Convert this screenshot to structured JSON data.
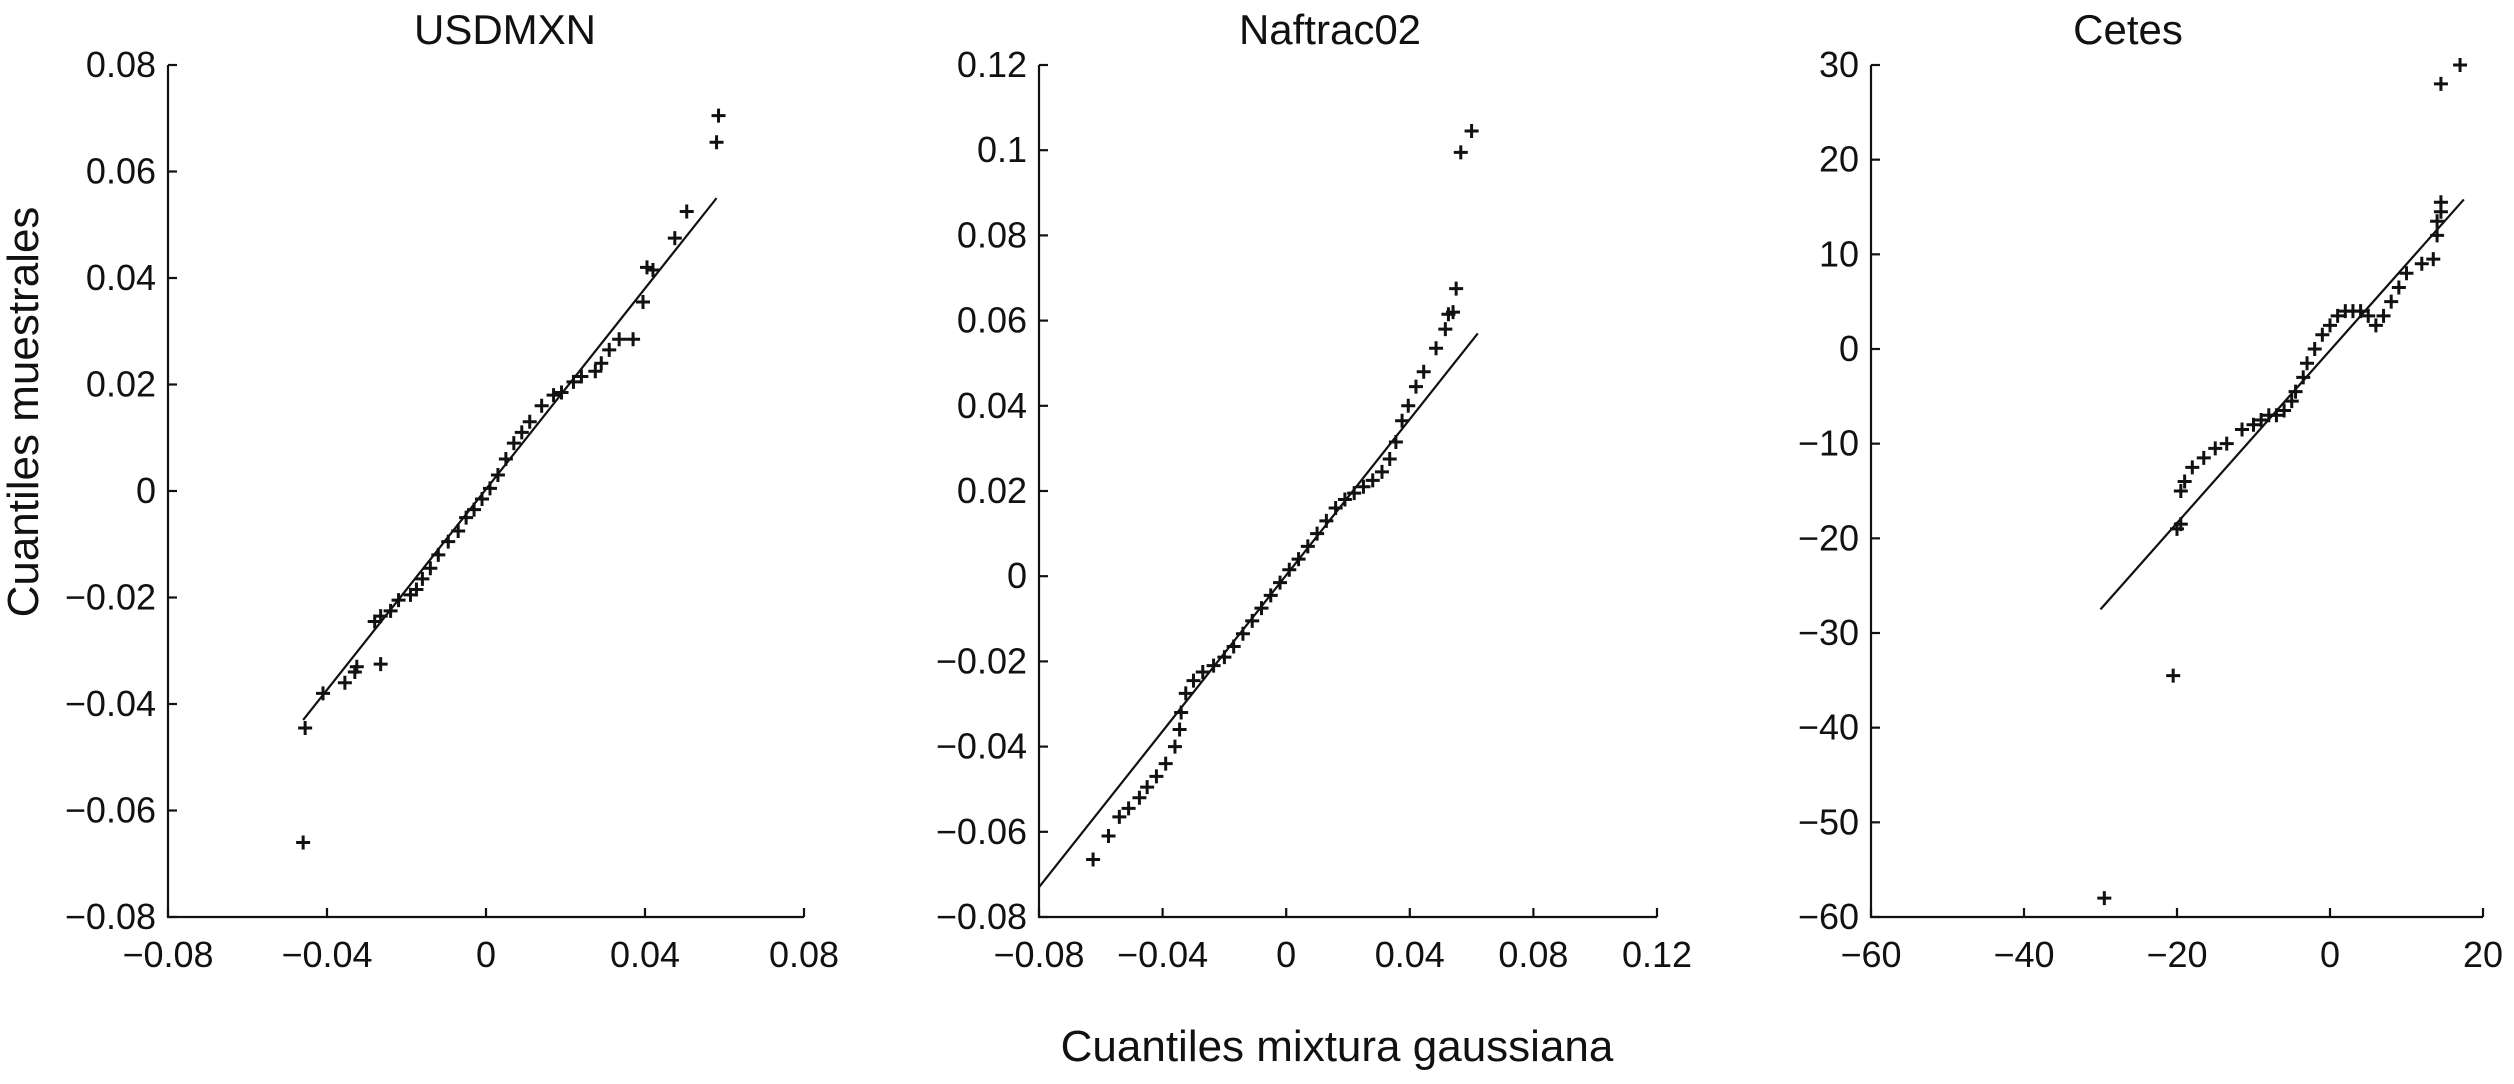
{
  "figure": {
    "xlabel": "Cuantiles mixtura gaussiana",
    "ylabel": "Cuantiles muestrales"
  },
  "chart_data": [
    {
      "type": "scatter",
      "title": "USDMXN",
      "xlim": [
        -0.08,
        0.08
      ],
      "ylim": [
        -0.08,
        0.08
      ],
      "xticks": [
        -0.08,
        -0.04,
        0,
        0.04,
        0.08
      ],
      "xtick_labels": [
        "−0.08",
        "−0.04",
        "0",
        "0.04",
        "0.08"
      ],
      "yticks": [
        -0.08,
        -0.06,
        -0.04,
        -0.02,
        0,
        0.02,
        0.04,
        0.06,
        0.08
      ],
      "ytick_labels": [
        "−0.08",
        "−0.06",
        "−0.04",
        "−0.02",
        "0",
        "0.02",
        "0.04",
        "0.06",
        "0.08"
      ],
      "reference_line": {
        "x": [
          -0.046,
          0.058
        ],
        "y": [
          -0.043,
          0.055
        ]
      },
      "points": [
        [
          -0.046,
          -0.066
        ],
        [
          -0.0455,
          -0.0445
        ],
        [
          -0.041,
          -0.038
        ],
        [
          -0.0355,
          -0.036
        ],
        [
          -0.033,
          -0.034
        ],
        [
          -0.0325,
          -0.033
        ],
        [
          -0.0265,
          -0.0325
        ],
        [
          -0.028,
          -0.0245
        ],
        [
          -0.0265,
          -0.0235
        ],
        [
          -0.024,
          -0.0225
        ],
        [
          -0.022,
          -0.0205
        ],
        [
          -0.019,
          -0.0195
        ],
        [
          -0.0175,
          -0.0185
        ],
        [
          -0.016,
          -0.0165
        ],
        [
          -0.014,
          -0.0145
        ],
        [
          -0.012,
          -0.012
        ],
        [
          -0.0095,
          -0.0095
        ],
        [
          -0.007,
          -0.0075
        ],
        [
          -0.005,
          -0.005
        ],
        [
          -0.003,
          -0.0035
        ],
        [
          -0.001,
          -0.0015
        ],
        [
          0.001,
          0.0005
        ],
        [
          0.003,
          0.003
        ],
        [
          0.005,
          0.006
        ],
        [
          0.007,
          0.009
        ],
        [
          0.009,
          0.011
        ],
        [
          0.011,
          0.013
        ],
        [
          0.014,
          0.016
        ],
        [
          0.017,
          0.018
        ],
        [
          0.019,
          0.0185
        ],
        [
          0.022,
          0.0205
        ],
        [
          0.024,
          0.0215
        ],
        [
          0.0275,
          0.0225
        ],
        [
          0.029,
          0.024
        ],
        [
          0.031,
          0.0265
        ],
        [
          0.0335,
          0.0285
        ],
        [
          0.037,
          0.0285
        ],
        [
          0.0395,
          0.0355
        ],
        [
          0.0405,
          0.042
        ],
        [
          0.042,
          0.0415
        ],
        [
          0.0475,
          0.0475
        ],
        [
          0.0505,
          0.0525
        ],
        [
          0.058,
          0.0655
        ],
        [
          0.0585,
          0.0705
        ]
      ]
    },
    {
      "type": "scatter",
      "title": "Naftrac02",
      "xlim": [
        -0.08,
        0.12
      ],
      "ylim": [
        -0.08,
        0.12
      ],
      "xticks": [
        -0.08,
        -0.04,
        0,
        0.04,
        0.08,
        0.12
      ],
      "xtick_labels": [
        "−0.08",
        "−0.04",
        "0",
        "0.04",
        "0.08",
        "0.12"
      ],
      "yticks": [
        -0.08,
        -0.06,
        -0.04,
        -0.02,
        0,
        0.02,
        0.04,
        0.06,
        0.08,
        0.1,
        0.12
      ],
      "ytick_labels": [
        "−0.08",
        "−0.06",
        "−0.04",
        "−0.02",
        "0",
        "0.02",
        "0.04",
        "0.06",
        "0.08",
        "0.1",
        "0.12"
      ],
      "reference_line": {
        "x": [
          -0.08,
          0.062
        ],
        "y": [
          -0.073,
          0.057
        ]
      },
      "points": [
        [
          -0.0625,
          -0.0665
        ],
        [
          -0.0575,
          -0.061
        ],
        [
          -0.054,
          -0.0565
        ],
        [
          -0.051,
          -0.0545
        ],
        [
          -0.0475,
          -0.052
        ],
        [
          -0.045,
          -0.0495
        ],
        [
          -0.042,
          -0.047
        ],
        [
          -0.039,
          -0.044
        ],
        [
          -0.036,
          -0.04
        ],
        [
          -0.0345,
          -0.036
        ],
        [
          -0.034,
          -0.032
        ],
        [
          -0.0325,
          -0.0275
        ],
        [
          -0.03,
          -0.0245
        ],
        [
          -0.027,
          -0.0225
        ],
        [
          -0.0235,
          -0.021
        ],
        [
          -0.02,
          -0.019
        ],
        [
          -0.017,
          -0.0165
        ],
        [
          -0.014,
          -0.0135
        ],
        [
          -0.011,
          -0.0105
        ],
        [
          -0.008,
          -0.0075
        ],
        [
          -0.005,
          -0.0045
        ],
        [
          -0.002,
          -0.0015
        ],
        [
          0.001,
          0.0015
        ],
        [
          0.004,
          0.004
        ],
        [
          0.007,
          0.007
        ],
        [
          0.01,
          0.01
        ],
        [
          0.013,
          0.013
        ],
        [
          0.016,
          0.016
        ],
        [
          0.019,
          0.018
        ],
        [
          0.022,
          0.0195
        ],
        [
          0.025,
          0.021
        ],
        [
          0.028,
          0.0225
        ],
        [
          0.031,
          0.0245
        ],
        [
          0.0335,
          0.0275
        ],
        [
          0.0355,
          0.0315
        ],
        [
          0.0375,
          0.0365
        ],
        [
          0.0395,
          0.04
        ],
        [
          0.042,
          0.0445
        ],
        [
          0.0445,
          0.048
        ],
        [
          0.0485,
          0.0535
        ],
        [
          0.0515,
          0.058
        ],
        [
          0.0525,
          0.0615
        ],
        [
          0.054,
          0.062
        ],
        [
          0.055,
          0.0675
        ],
        [
          0.0565,
          0.0995
        ],
        [
          0.06,
          0.1045
        ]
      ]
    },
    {
      "type": "scatter",
      "title": "Cetes",
      "xlim": [
        -60,
        20
      ],
      "ylim": [
        -60,
        30
      ],
      "xticks": [
        -60,
        -40,
        -20,
        0,
        20
      ],
      "xtick_labels": [
        "−60",
        "−40",
        "−20",
        "0",
        "20"
      ],
      "yticks": [
        -60,
        -50,
        -40,
        -30,
        -20,
        -10,
        0,
        10,
        20,
        30
      ],
      "ytick_labels": [
        "−60",
        "−50",
        "−40",
        "−30",
        "−20",
        "−10",
        "0",
        "10",
        "20",
        "30"
      ],
      "reference_line": {
        "x": [
          -30,
          17.5
        ],
        "y": [
          -27.5,
          15.8
        ]
      },
      "points": [
        [
          -29.5,
          -58
        ],
        [
          -20.5,
          -34.5
        ],
        [
          -20,
          -19
        ],
        [
          -19.5,
          -18.5
        ],
        [
          -19.5,
          -15
        ],
        [
          -19,
          -14
        ],
        [
          -18,
          -12.5
        ],
        [
          -16.5,
          -11.5
        ],
        [
          -15,
          -10.5
        ],
        [
          -13.5,
          -10
        ],
        [
          -11.5,
          -8.5
        ],
        [
          -10,
          -8
        ],
        [
          -9,
          -7.5
        ],
        [
          -8,
          -7
        ],
        [
          -7,
          -7
        ],
        [
          -6,
          -6.5
        ],
        [
          -5,
          -5.5
        ],
        [
          -4.5,
          -4.5
        ],
        [
          -3.5,
          -3
        ],
        [
          -3,
          -1.5
        ],
        [
          -2,
          0
        ],
        [
          -1,
          1.5
        ],
        [
          0,
          2.5
        ],
        [
          1,
          3.5
        ],
        [
          2,
          4
        ],
        [
          3,
          4
        ],
        [
          4,
          4
        ],
        [
          5,
          3.5
        ],
        [
          6,
          2.5
        ],
        [
          7,
          3.5
        ],
        [
          8,
          5
        ],
        [
          9,
          6.5
        ],
        [
          10,
          8
        ],
        [
          12,
          9
        ],
        [
          13.5,
          9.5
        ],
        [
          14,
          12
        ],
        [
          14,
          13.5
        ],
        [
          14.5,
          14.5
        ],
        [
          14.5,
          15.5
        ],
        [
          14.5,
          28
        ],
        [
          17,
          30
        ]
      ]
    }
  ]
}
